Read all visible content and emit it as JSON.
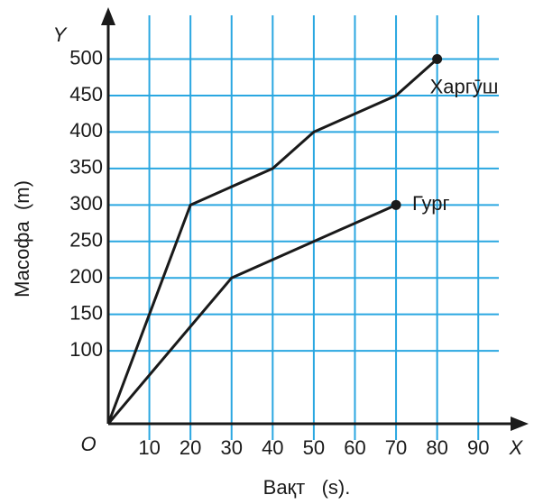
{
  "chart_data": {
    "type": "line",
    "x_axis_letter": "X",
    "y_axis_letter": "Y",
    "origin_label": "O",
    "x_label": "Вақт   (s).",
    "y_label": "Масофа  (m)",
    "xlim": [
      0,
      95
    ],
    "ylim": [
      0,
      560
    ],
    "xticks": [
      10,
      20,
      30,
      40,
      50,
      60,
      70,
      80,
      90
    ],
    "yticks": [
      100,
      150,
      200,
      250,
      300,
      350,
      400,
      450,
      500
    ],
    "grid": true,
    "grid_color": "#2aa7e1",
    "series": [
      {
        "name": "Харгӯш",
        "color": "#1a1a1a",
        "x": [
          0,
          10,
          20,
          40,
          50,
          70,
          80
        ],
        "values": [
          0,
          150,
          300,
          350,
          400,
          450,
          500
        ]
      },
      {
        "name": "Гург",
        "color": "#1a1a1a",
        "x": [
          0,
          30,
          70
        ],
        "values": [
          0,
          200,
          300
        ]
      }
    ]
  }
}
